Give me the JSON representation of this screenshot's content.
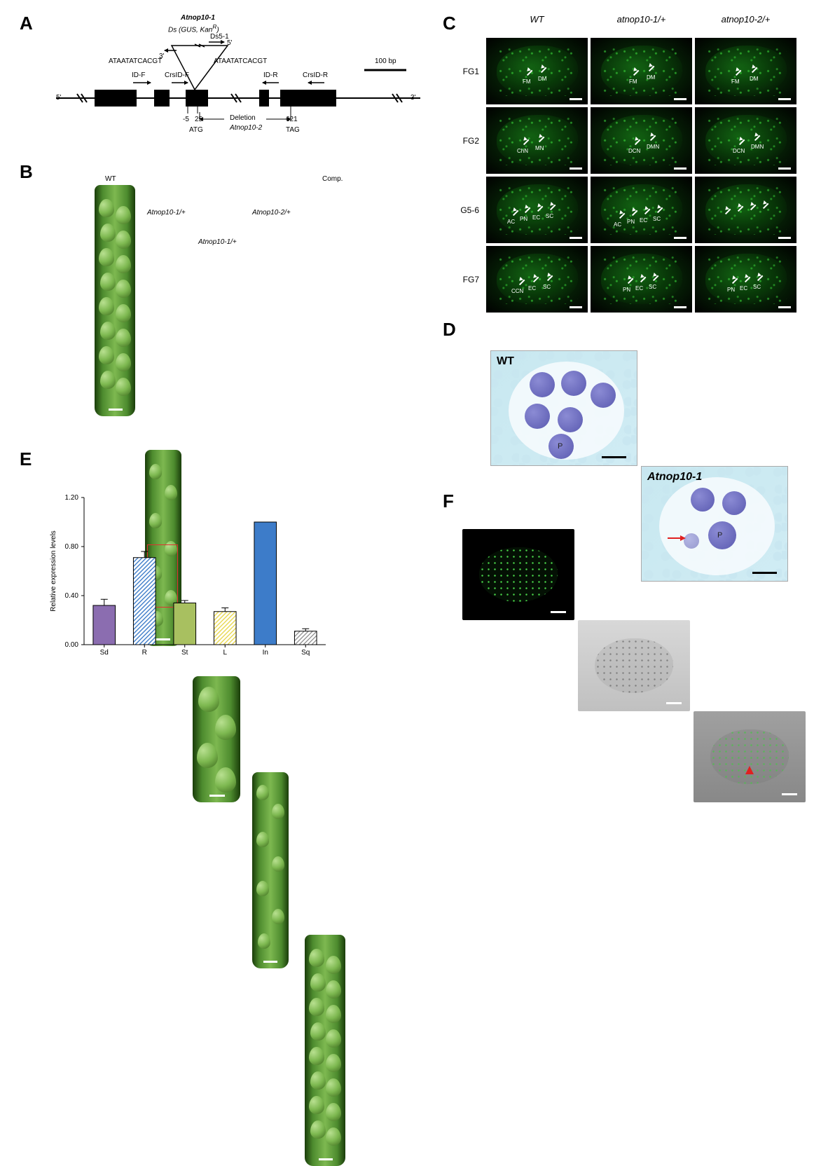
{
  "panelA": {
    "label": "A",
    "top_labels": {
      "line1": "Atnop10-1",
      "line2": "Ds (GUS, Kan",
      "line2_sup": "R",
      "line2_close": ")"
    },
    "ds_label": "Ds5-1",
    "flank_seq": "ATAATATCACGT",
    "three_prime": "3'",
    "five_prime": "5'",
    "scale": "100 bp",
    "primers": {
      "idf": "ID-F",
      "crsidf": "CrsID-F",
      "idr": "ID-R",
      "crsidr": "CrsID-R"
    },
    "deletion": "Deletion",
    "allele2": "Atnop10-2",
    "positions": {
      "m5": "-5",
      "p25": "25",
      "p621": "621"
    },
    "atg": "ATG",
    "tag": "TAG"
  },
  "panelB": {
    "label": "B",
    "wt": "WT",
    "a1": "Atnop10-1/+",
    "a1b": "Atnop10-1/+",
    "a2": "Atnop10-2/+",
    "comp": "Comp."
  },
  "panelC": {
    "label": "C",
    "cols": [
      "WT",
      "atnop10-1/+",
      "atnop10-2/+"
    ],
    "rows": [
      "FG1",
      "FG2",
      "G5-6",
      "FG7"
    ],
    "annot": {
      "fm": "FM",
      "dm": "DM",
      "chn": "ChN",
      "mn": "MN",
      "dcn": "DCN",
      "dmn": "DMN",
      "ac": "AC",
      "pn": "PN",
      "ec": "EC",
      "sc": "SC",
      "ccn": "CCN"
    }
  },
  "panelD": {
    "label": "D",
    "wt": "WT",
    "mut": "Atnop10-1",
    "p": "P"
  },
  "panelE": {
    "label": "E",
    "type": "bar",
    "ylabel": "Relative expression levels",
    "categories": [
      "Sd",
      "R",
      "St",
      "L",
      "In",
      "Sq"
    ],
    "values": [
      0.32,
      0.71,
      0.34,
      0.27,
      1.0,
      0.11
    ],
    "errors": [
      0.05,
      0.05,
      0.02,
      0.03,
      0,
      0.02
    ],
    "ylim": [
      0,
      1.2
    ],
    "yticks": [
      0.0,
      0.4,
      0.8,
      1.2
    ],
    "bar_styles": [
      {
        "fill": "#8b6db0",
        "pattern": "solid"
      },
      {
        "fill": "#ffffff",
        "pattern": "diag-blue"
      },
      {
        "fill": "#a8c060",
        "pattern": "solid"
      },
      {
        "fill": "#ffffff",
        "pattern": "diag-yellow"
      },
      {
        "fill": "#3d7cc9",
        "pattern": "solid"
      },
      {
        "fill": "#ffffff",
        "pattern": "diag-gray"
      }
    ],
    "axis_fontsize": 10
  },
  "panelF": {
    "label": "F"
  }
}
